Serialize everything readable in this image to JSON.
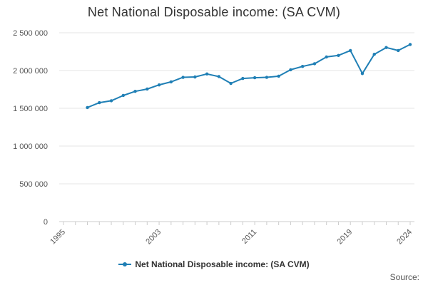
{
  "chart_data": {
    "type": "line",
    "title": "Net National Disposable income: (SA CVM)",
    "xlabel": "",
    "ylabel": "",
    "x": [
      1997,
      1998,
      1999,
      2000,
      2001,
      2002,
      2003,
      2004,
      2005,
      2006,
      2007,
      2008,
      2009,
      2010,
      2011,
      2012,
      2013,
      2014,
      2015,
      2016,
      2017,
      2018,
      2019,
      2020,
      2021,
      2022,
      2023,
      2024
    ],
    "series": [
      {
        "name": "Net National Disposable income: (SA CVM)",
        "values": [
          1510000,
          1575000,
          1600000,
          1670000,
          1725000,
          1755000,
          1810000,
          1850000,
          1910000,
          1915000,
          1955000,
          1920000,
          1830000,
          1895000,
          1905000,
          1910000,
          1925000,
          2010000,
          2055000,
          2090000,
          2180000,
          2200000,
          2265000,
          1960000,
          2215000,
          2305000,
          2265000,
          2345000
        ]
      }
    ],
    "xlim": [
      1995,
      2024
    ],
    "ylim": [
      0,
      2500000
    ],
    "yticks": [
      0,
      500000,
      1000000,
      1500000,
      2000000,
      2500000
    ],
    "ytick_labels": [
      "0",
      "500 000",
      "1 000 000",
      "1 500 000",
      "2 000 000",
      "2 500 000"
    ],
    "xticks": [
      1995,
      2003,
      2011,
      2019,
      2024
    ],
    "xtick_labels": [
      "1995",
      "2003",
      "2011",
      "2019",
      "2024"
    ],
    "grid": "horizontal",
    "legend_position": "bottom-center",
    "line_color": "#1f7fb5"
  },
  "footer": {
    "source_label": "Source:"
  }
}
